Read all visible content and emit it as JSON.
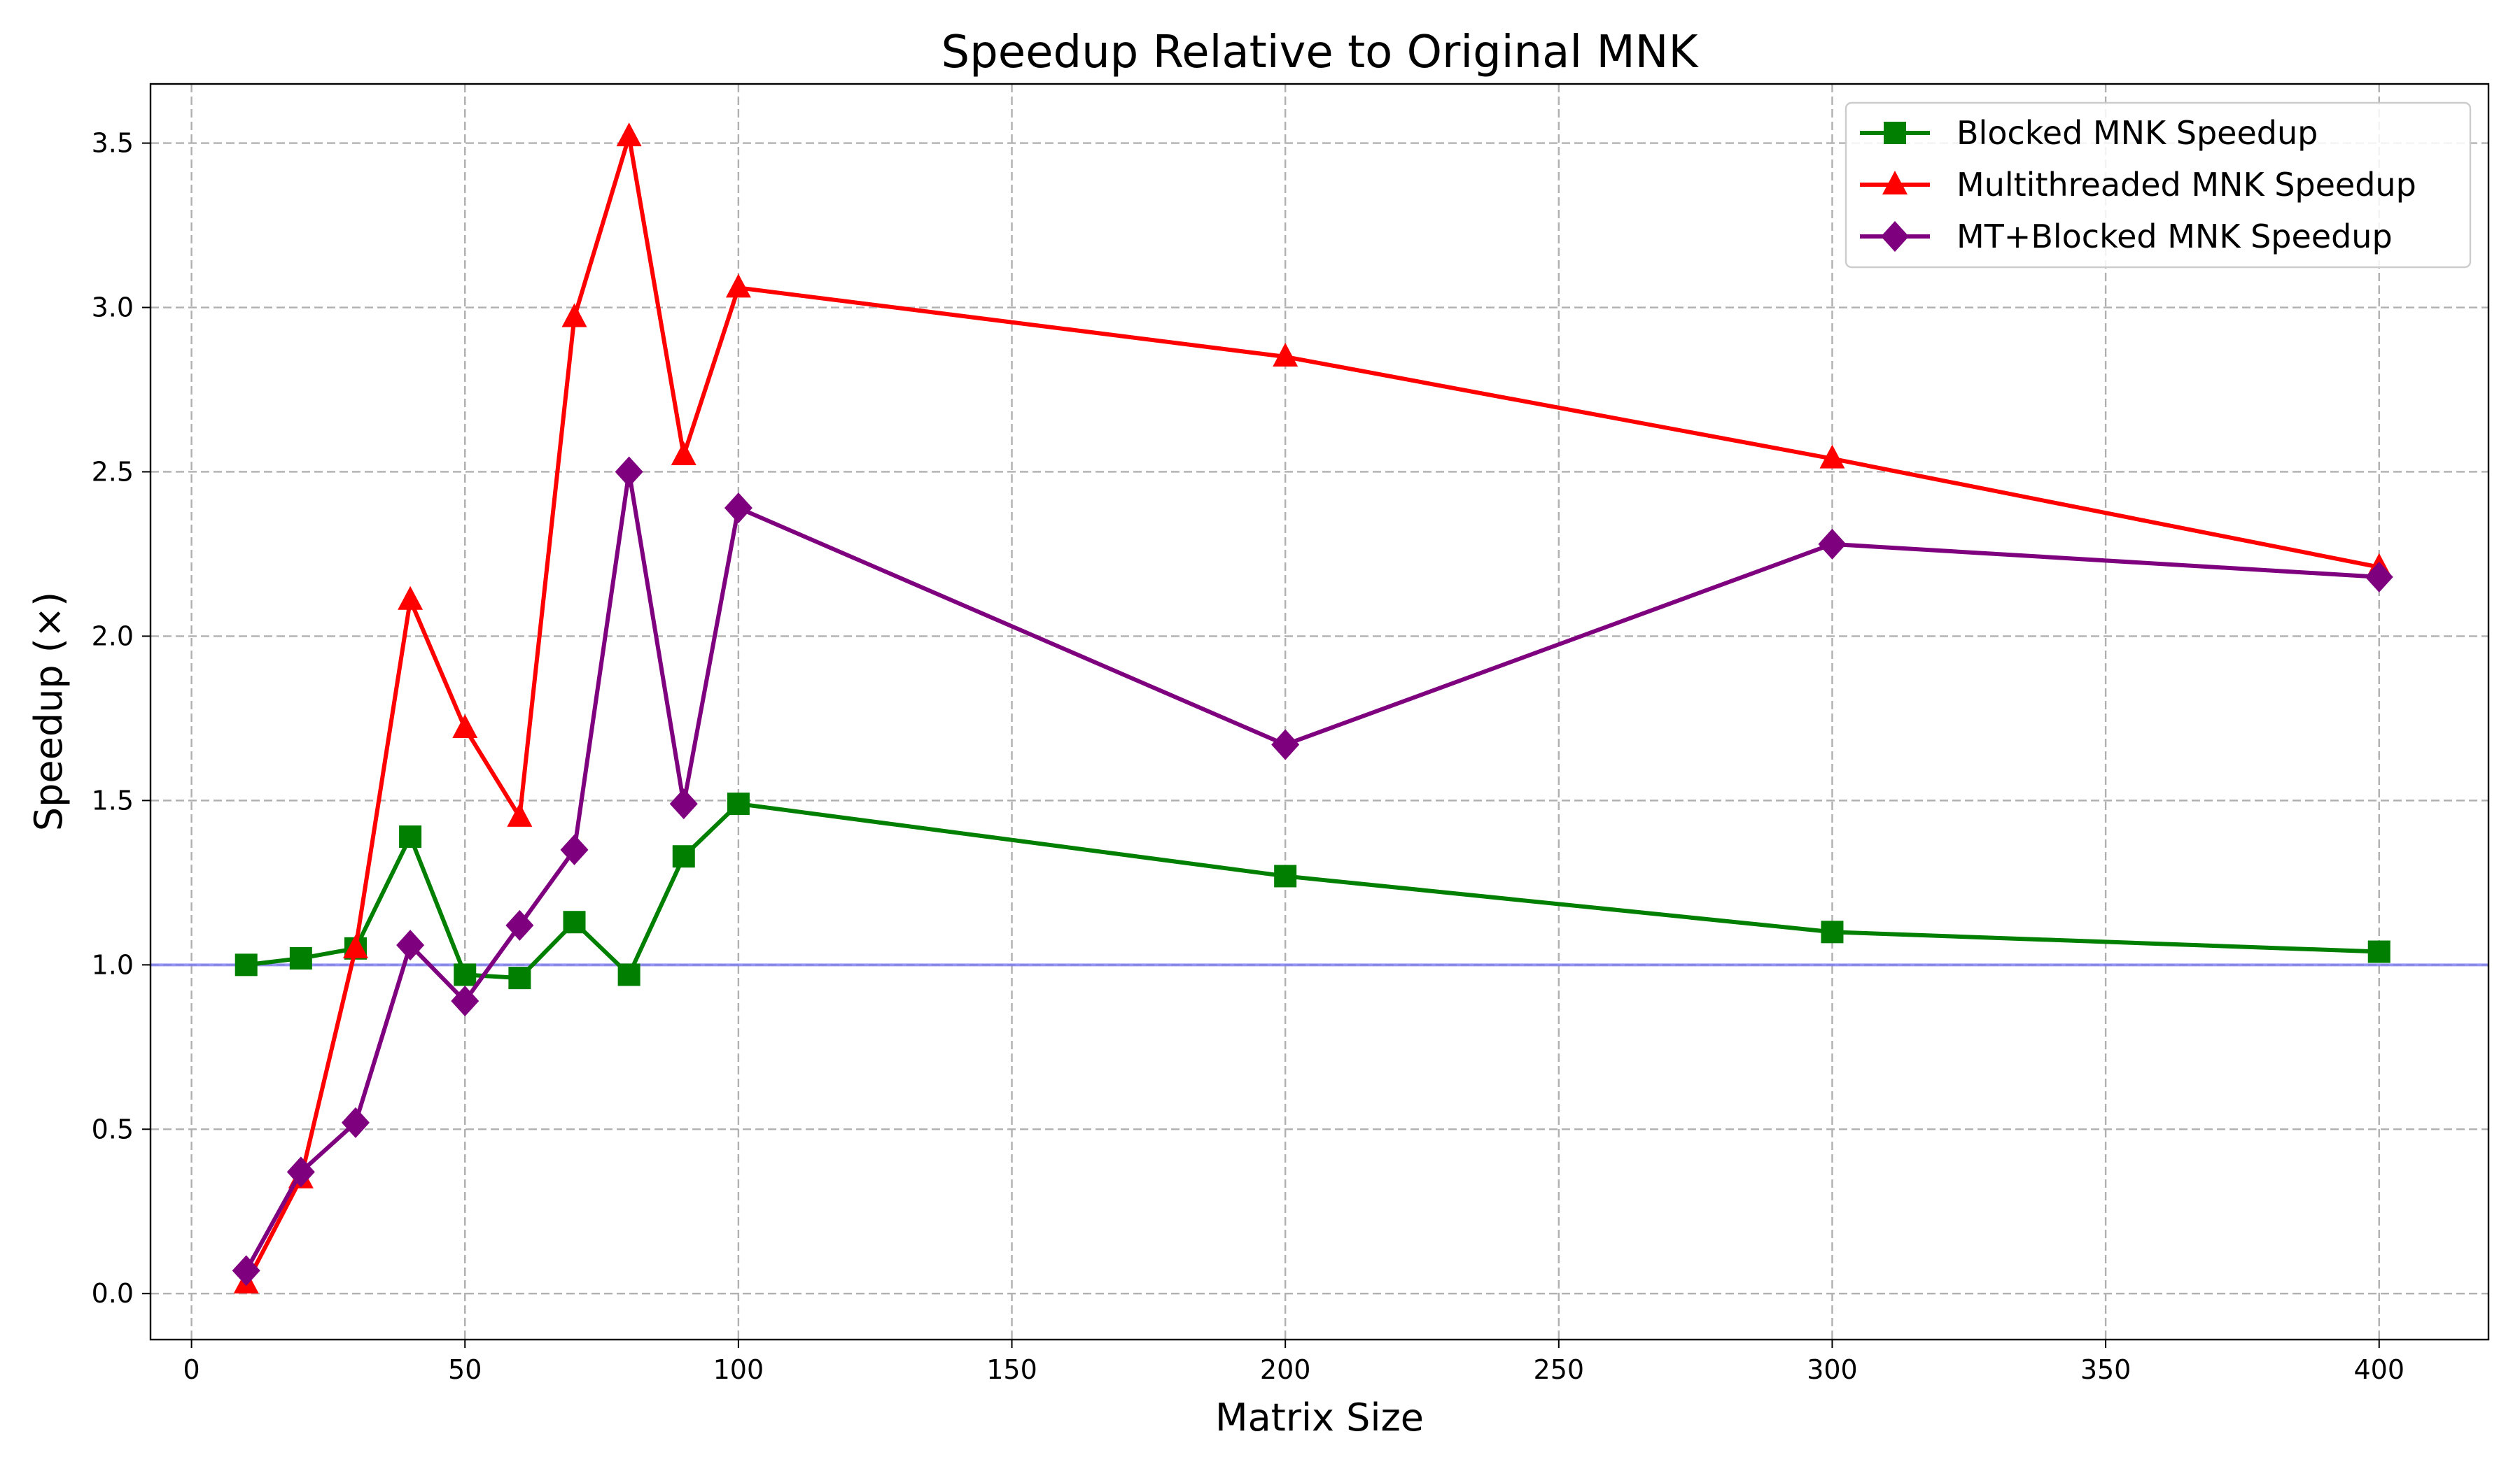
{
  "chart_data": {
    "type": "line",
    "title": "Speedup Relative to Original MNK",
    "xlabel": "Matrix Size",
    "ylabel": "Speedup (×)",
    "xlim": [
      -7.5,
      420
    ],
    "ylim": [
      -0.14,
      3.68
    ],
    "xticks": [
      0,
      50,
      100,
      150,
      200,
      250,
      300,
      350,
      400
    ],
    "xtick_labels": [
      "0",
      "50",
      "100",
      "150",
      "200",
      "250",
      "300",
      "350",
      "400"
    ],
    "yticks": [
      0.0,
      0.5,
      1.0,
      1.5,
      2.0,
      2.5,
      3.0,
      3.5
    ],
    "ytick_labels": [
      "0.0",
      "0.5",
      "1.0",
      "1.5",
      "2.0",
      "2.5",
      "3.0",
      "3.5"
    ],
    "grid": true,
    "legend_position": "top-right",
    "reference_line": {
      "y": 1.0,
      "color": "#7b7bf0"
    },
    "x": [
      10,
      20,
      30,
      40,
      50,
      60,
      70,
      80,
      90,
      100,
      200,
      300,
      400
    ],
    "series": [
      {
        "name": "Blocked MNK Speedup",
        "color": "#007f00",
        "marker": "square",
        "values": [
          1.0,
          1.02,
          1.05,
          1.39,
          0.97,
          0.96,
          1.13,
          0.97,
          1.33,
          1.49,
          1.27,
          1.1,
          1.04
        ]
      },
      {
        "name": "Multithreaded MNK Speedup",
        "color": "#ff0000",
        "marker": "triangle",
        "values": [
          0.03,
          0.35,
          1.05,
          2.11,
          1.72,
          1.45,
          2.97,
          3.52,
          2.55,
          3.06,
          2.85,
          2.54,
          2.21
        ]
      },
      {
        "name": "MT+Blocked MNK Speedup",
        "color": "#7f007f",
        "marker": "diamond",
        "values": [
          0.07,
          0.37,
          0.52,
          1.06,
          0.89,
          1.12,
          1.35,
          2.5,
          1.49,
          2.39,
          1.67,
          2.28,
          2.18
        ]
      }
    ]
  }
}
